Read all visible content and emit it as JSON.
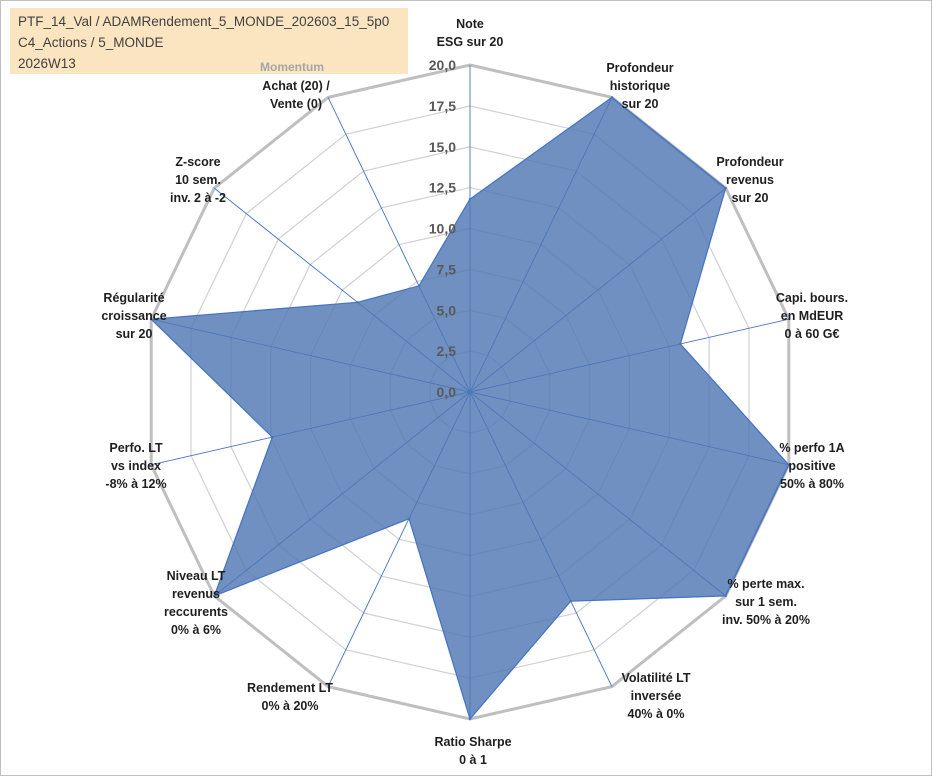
{
  "info": {
    "line1": "PTF_14_Val / ADAMRendement_5_MONDE_202603_15_5p0",
    "line2": "C4_Actions / 5_MONDE",
    "line3": "2026W13"
  },
  "colors": {
    "fill": "#4f78b3",
    "line": "#4472c4",
    "grid": "#d0d0d0",
    "outer": "#bfbfbf"
  },
  "chart_data": {
    "type": "radar",
    "title": "",
    "rlim": [
      0,
      20
    ],
    "ticks": [
      "0,0",
      "2,5",
      "5,0",
      "7,5",
      "10,0",
      "12,5",
      "15,0",
      "17,5",
      "20,0"
    ],
    "series_label": "Momentum",
    "axes": [
      {
        "label": [
          "Note",
          "ESG sur 20"
        ],
        "value": 11.8
      },
      {
        "label": [
          "Profondeur",
          "historique",
          "sur 20"
        ],
        "value": 20
      },
      {
        "label": [
          "Profondeur",
          "revenus",
          "sur 20"
        ],
        "value": 20
      },
      {
        "label": [
          "Capi. bours.",
          "en MdEUR",
          "0 à 60 G€"
        ],
        "value": 13.2
      },
      {
        "label": [
          "% perfo 1A",
          "positive",
          "50% à 80%"
        ],
        "value": 20
      },
      {
        "label": [
          "% perte max.",
          "sur 1 sem.",
          "inv. 50% à 20%"
        ],
        "value": 20
      },
      {
        "label": [
          "Volatilité LT",
          "inversée",
          "40% à 0%"
        ],
        "value": 14.2
      },
      {
        "label": [
          "Ratio Sharpe",
          "0 à 1"
        ],
        "value": 20
      },
      {
        "label": [
          "Rendement LT",
          "0% à 20%"
        ],
        "value": 8.6
      },
      {
        "label": [
          "Niveau LT",
          "revenus",
          "reccurents",
          "0% à 6%"
        ],
        "value": 20
      },
      {
        "label": [
          "Perfo. LT",
          "vs index",
          "-8% à 12%"
        ],
        "value": 12.4
      },
      {
        "label": [
          "Régularité",
          "croissance",
          "sur 20"
        ],
        "value": 20
      },
      {
        "label": [
          "Z-score",
          "10 sem.",
          "inv. 2 à -2"
        ],
        "value": 8.8
      },
      {
        "label": [
          "Achat (20) /",
          "Vente (0)"
        ],
        "value": 7.2
      }
    ]
  }
}
